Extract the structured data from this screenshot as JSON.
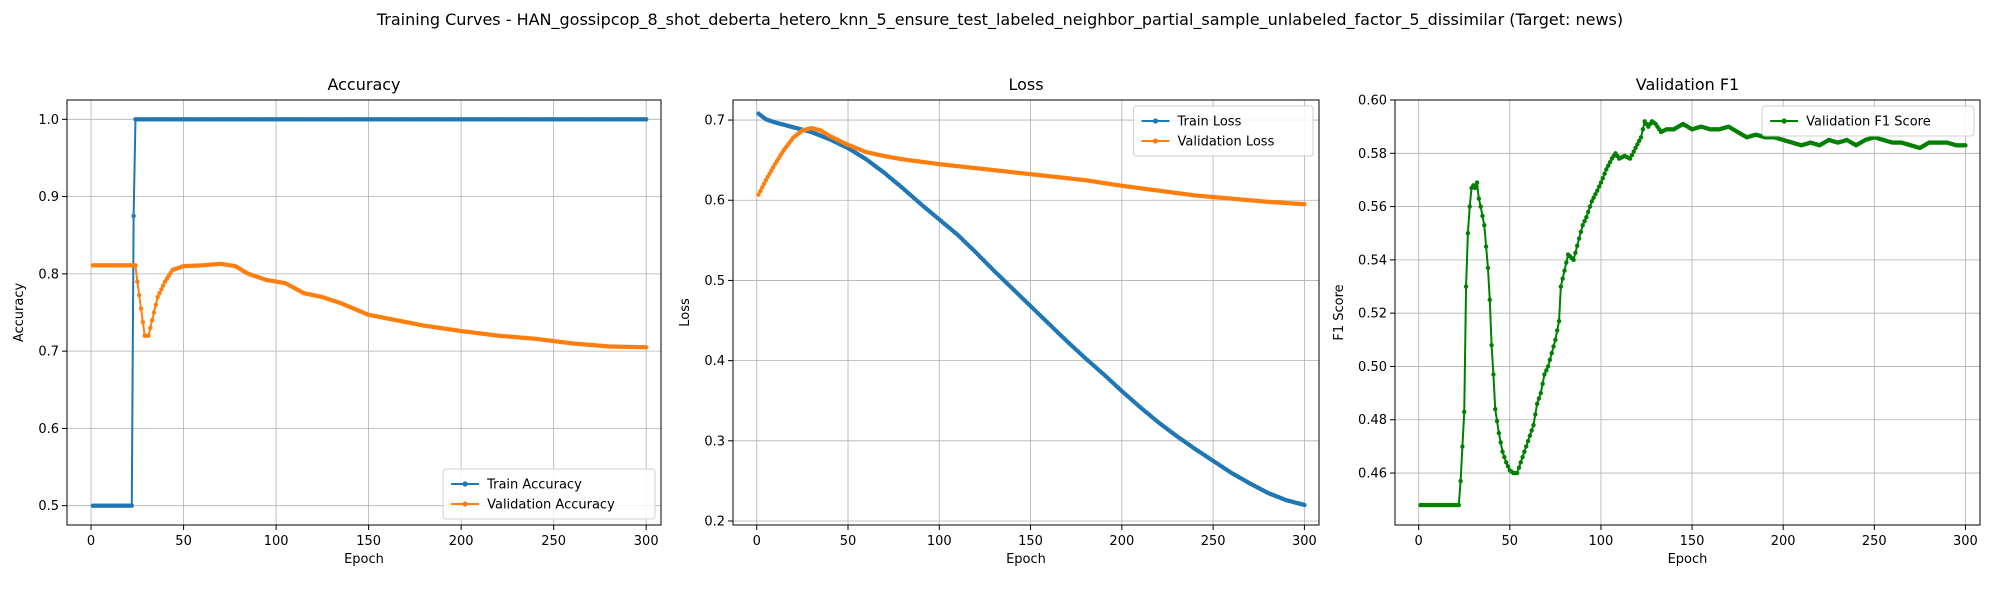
{
  "figure": {
    "suptitle": "Training Curves - HAN_gossipcop_8_shot_deberta_hetero_knn_5_ensure_test_labeled_neighbor_partial_sample_unlabeled_factor_5_dissimilar (Target: news)"
  },
  "colors": {
    "blue": "#1f77b4",
    "orange": "#ff7f0e",
    "green": "#008000",
    "grid": "#b0b0b0"
  },
  "chart_data": [
    {
      "type": "line",
      "title": "Accuracy",
      "xlabel": "Epoch",
      "ylabel": "Accuracy",
      "xlim": [
        -13,
        308
      ],
      "ylim": [
        0.475,
        1.025
      ],
      "xticks": [
        0,
        50,
        100,
        150,
        200,
        250,
        300
      ],
      "yticks": [
        0.5,
        0.6,
        0.7,
        0.8,
        0.9,
        1.0
      ],
      "ytick_labels": [
        "0.5",
        "0.6",
        "0.7",
        "0.8",
        "0.9",
        "1.0"
      ],
      "grid": true,
      "legend_position": "lower-right",
      "series": [
        {
          "name": "Train Accuracy",
          "color": "#1f77b4",
          "points": [
            [
              1,
              0.5
            ],
            [
              22,
              0.5
            ],
            [
              23,
              0.875
            ],
            [
              24,
              1.0
            ],
            [
              300,
              1.0
            ]
          ]
        },
        {
          "name": "Validation Accuracy",
          "color": "#ff7f0e",
          "points": [
            [
              1,
              0.811
            ],
            [
              24,
              0.811
            ],
            [
              25,
              0.79
            ],
            [
              27,
              0.755
            ],
            [
              29,
              0.72
            ],
            [
              31,
              0.72
            ],
            [
              33,
              0.74
            ],
            [
              36,
              0.77
            ],
            [
              40,
              0.79
            ],
            [
              44,
              0.805
            ],
            [
              50,
              0.81
            ],
            [
              60,
              0.811
            ],
            [
              70,
              0.813
            ],
            [
              78,
              0.81
            ],
            [
              85,
              0.8
            ],
            [
              95,
              0.792
            ],
            [
              105,
              0.788
            ],
            [
              115,
              0.775
            ],
            [
              125,
              0.77
            ],
            [
              135,
              0.762
            ],
            [
              150,
              0.747
            ],
            [
              165,
              0.74
            ],
            [
              180,
              0.733
            ],
            [
              200,
              0.726
            ],
            [
              220,
              0.72
            ],
            [
              240,
              0.716
            ],
            [
              260,
              0.71
            ],
            [
              280,
              0.706
            ],
            [
              300,
              0.705
            ]
          ]
        }
      ]
    },
    {
      "type": "line",
      "title": "Loss",
      "xlabel": "Epoch",
      "ylabel": "Loss",
      "xlim": [
        -13,
        308
      ],
      "ylim": [
        0.195,
        0.725
      ],
      "xticks": [
        0,
        50,
        100,
        150,
        200,
        250,
        300
      ],
      "yticks": [
        0.2,
        0.3,
        0.4,
        0.5,
        0.6,
        0.7
      ],
      "ytick_labels": [
        "0.2",
        "0.3",
        "0.4",
        "0.5",
        "0.6",
        "0.7"
      ],
      "grid": true,
      "legend_position": "upper-right",
      "series": [
        {
          "name": "Train Loss",
          "color": "#1f77b4",
          "points": [
            [
              1,
              0.708
            ],
            [
              5,
              0.701
            ],
            [
              10,
              0.697
            ],
            [
              20,
              0.691
            ],
            [
              30,
              0.685
            ],
            [
              40,
              0.676
            ],
            [
              50,
              0.665
            ],
            [
              60,
              0.651
            ],
            [
              70,
              0.634
            ],
            [
              80,
              0.615
            ],
            [
              90,
              0.595
            ],
            [
              100,
              0.576
            ],
            [
              110,
              0.557
            ],
            [
              120,
              0.535
            ],
            [
              130,
              0.512
            ],
            [
              140,
              0.49
            ],
            [
              150,
              0.468
            ],
            [
              160,
              0.446
            ],
            [
              170,
              0.424
            ],
            [
              180,
              0.403
            ],
            [
              190,
              0.383
            ],
            [
              200,
              0.362
            ],
            [
              210,
              0.342
            ],
            [
              220,
              0.323
            ],
            [
              230,
              0.306
            ],
            [
              240,
              0.29
            ],
            [
              250,
              0.275
            ],
            [
              260,
              0.26
            ],
            [
              270,
              0.247
            ],
            [
              280,
              0.235
            ],
            [
              290,
              0.226
            ],
            [
              300,
              0.22
            ]
          ]
        },
        {
          "name": "Validation Loss",
          "color": "#ff7f0e",
          "points": [
            [
              1,
              0.607
            ],
            [
              5,
              0.625
            ],
            [
              10,
              0.645
            ],
            [
              15,
              0.663
            ],
            [
              20,
              0.678
            ],
            [
              25,
              0.687
            ],
            [
              30,
              0.69
            ],
            [
              35,
              0.687
            ],
            [
              40,
              0.68
            ],
            [
              50,
              0.669
            ],
            [
              60,
              0.66
            ],
            [
              70,
              0.655
            ],
            [
              80,
              0.651
            ],
            [
              100,
              0.645
            ],
            [
              120,
              0.64
            ],
            [
              140,
              0.635
            ],
            [
              160,
              0.63
            ],
            [
              180,
              0.625
            ],
            [
              200,
              0.618
            ],
            [
              220,
              0.612
            ],
            [
              240,
              0.606
            ],
            [
              260,
              0.602
            ],
            [
              280,
              0.598
            ],
            [
              300,
              0.595
            ]
          ]
        }
      ]
    },
    {
      "type": "line",
      "title": "Validation F1",
      "xlabel": "Epoch",
      "ylabel": "F1 Score",
      "xlim": [
        -13,
        308
      ],
      "ylim": [
        0.4405,
        0.6
      ],
      "xticks": [
        0,
        50,
        100,
        150,
        200,
        250,
        300
      ],
      "yticks": [
        0.46,
        0.48,
        0.5,
        0.52,
        0.54,
        0.56,
        0.58,
        0.6
      ],
      "ytick_labels": [
        "0.46",
        "0.48",
        "0.50",
        "0.52",
        "0.54",
        "0.56",
        "0.58",
        "0.60"
      ],
      "grid": true,
      "legend_position": "upper-right",
      "series": [
        {
          "name": "Validation F1 Score",
          "color": "#008000",
          "points": [
            [
              1,
              0.448
            ],
            [
              22,
              0.448
            ],
            [
              23,
              0.457
            ],
            [
              25,
              0.483
            ],
            [
              26,
              0.53
            ],
            [
              27,
              0.55
            ],
            [
              28,
              0.56
            ],
            [
              29,
              0.567
            ],
            [
              30,
              0.568
            ],
            [
              31,
              0.567
            ],
            [
              32,
              0.569
            ],
            [
              33,
              0.563
            ],
            [
              34,
              0.56
            ],
            [
              36,
              0.553
            ],
            [
              37,
              0.545
            ],
            [
              38,
              0.537
            ],
            [
              39,
              0.525
            ],
            [
              40,
              0.508
            ],
            [
              41,
              0.497
            ],
            [
              42,
              0.484
            ],
            [
              44,
              0.475
            ],
            [
              46,
              0.468
            ],
            [
              48,
              0.464
            ],
            [
              50,
              0.461
            ],
            [
              52,
              0.46
            ],
            [
              54,
              0.46
            ],
            [
              56,
              0.464
            ],
            [
              58,
              0.468
            ],
            [
              60,
              0.472
            ],
            [
              63,
              0.478
            ],
            [
              65,
              0.486
            ],
            [
              67,
              0.49
            ],
            [
              69,
              0.497
            ],
            [
              71,
              0.5
            ],
            [
              73,
              0.505
            ],
            [
              75,
              0.51
            ],
            [
              77,
              0.517
            ],
            [
              78,
              0.53
            ],
            [
              80,
              0.536
            ],
            [
              82,
              0.542
            ],
            [
              85,
              0.54
            ],
            [
              88,
              0.548
            ],
            [
              90,
              0.553
            ],
            [
              92,
              0.556
            ],
            [
              95,
              0.562
            ],
            [
              98,
              0.566
            ],
            [
              100,
              0.569
            ],
            [
              103,
              0.574
            ],
            [
              106,
              0.578
            ],
            [
              108,
              0.58
            ],
            [
              110,
              0.578
            ],
            [
              113,
              0.579
            ],
            [
              116,
              0.578
            ],
            [
              119,
              0.582
            ],
            [
              122,
              0.586
            ],
            [
              124,
              0.592
            ],
            [
              126,
              0.59
            ],
            [
              128,
              0.592
            ],
            [
              130,
              0.591
            ],
            [
              133,
              0.588
            ],
            [
              136,
              0.589
            ],
            [
              140,
              0.589
            ],
            [
              145,
              0.591
            ],
            [
              150,
              0.589
            ],
            [
              155,
              0.59
            ],
            [
              160,
              0.589
            ],
            [
              165,
              0.589
            ],
            [
              170,
              0.59
            ],
            [
              175,
              0.588
            ],
            [
              180,
              0.586
            ],
            [
              185,
              0.587
            ],
            [
              190,
              0.586
            ],
            [
              195,
              0.586
            ],
            [
              200,
              0.585
            ],
            [
              205,
              0.584
            ],
            [
              210,
              0.583
            ],
            [
              215,
              0.584
            ],
            [
              220,
              0.583
            ],
            [
              225,
              0.585
            ],
            [
              230,
              0.584
            ],
            [
              235,
              0.585
            ],
            [
              240,
              0.583
            ],
            [
              245,
              0.585
            ],
            [
              250,
              0.586
            ],
            [
              255,
              0.585
            ],
            [
              260,
              0.584
            ],
            [
              265,
              0.584
            ],
            [
              270,
              0.583
            ],
            [
              275,
              0.582
            ],
            [
              280,
              0.584
            ],
            [
              285,
              0.584
            ],
            [
              290,
              0.584
            ],
            [
              295,
              0.583
            ],
            [
              300,
              0.583
            ]
          ]
        }
      ]
    }
  ]
}
